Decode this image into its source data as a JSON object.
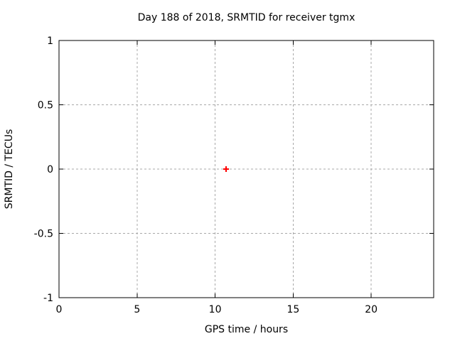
{
  "chart_data": {
    "type": "scatter",
    "title": "Day 188 of 2018, SRMTID for receiver tgmx",
    "xlabel": "GPS time / hours",
    "ylabel": "SRMTID / TECUs",
    "xlim": [
      0,
      24
    ],
    "ylim": [
      -1,
      1
    ],
    "xticks": {
      "values": [
        0,
        5,
        10,
        15,
        20
      ],
      "labels": [
        "0",
        "5",
        "10",
        "15",
        "20"
      ]
    },
    "yticks": {
      "values": [
        -1,
        -0.5,
        0,
        0.5,
        1
      ],
      "labels": [
        "-1",
        "-0.5",
        "0",
        "0.5",
        "1"
      ]
    },
    "grid": true,
    "legend": "none",
    "series": [
      {
        "name": "SRMTID",
        "marker": "plus",
        "color": "#ff0000",
        "points": [
          [
            10.7,
            0.0
          ]
        ]
      }
    ],
    "colors": {
      "background": "#ffffff",
      "frame": "#000000",
      "grid": "#a8a8a8",
      "tick_text": "#000000"
    }
  }
}
